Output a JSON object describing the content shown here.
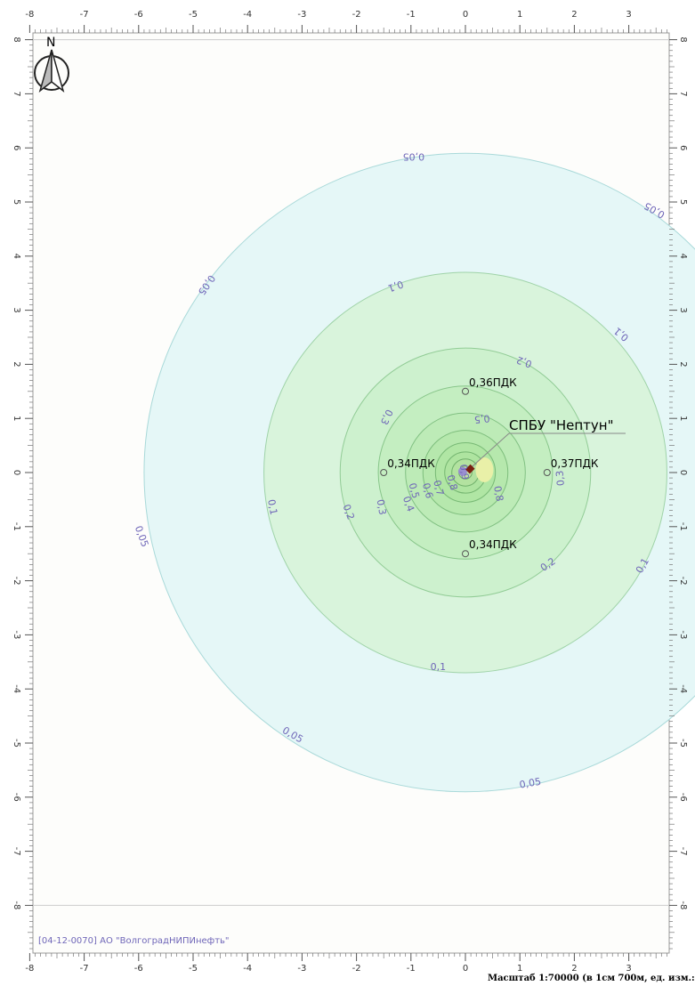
{
  "map": {
    "x_range": [
      -8,
      3.8
    ],
    "y_range": [
      -8.3,
      8.3
    ],
    "x_ticks": [
      "-8",
      "-7",
      "-6",
      "-5",
      "-4",
      "-3",
      "-2",
      "-1",
      "0",
      "1",
      "2",
      "3"
    ],
    "y_ticks": [
      "8",
      "7",
      "6",
      "5",
      "4",
      "3",
      "2",
      "1",
      "0",
      "-1",
      "-2",
      "-3",
      "-4",
      "-5",
      "-6",
      "-7",
      "-8"
    ],
    "north_label": "N",
    "source": {
      "name": "СПБУ \"Нептун\"",
      "x": 0.08,
      "y": 0.07
    },
    "isolines": [
      {
        "value": "0,05",
        "radius_km": 5.9,
        "fill": "#e5f7f7",
        "stroke": "#a9d9d9"
      },
      {
        "value": "0,1",
        "radius_km": 3.7,
        "fill": "#d9f4dc",
        "stroke": "#9fd3a8"
      },
      {
        "value": "0,2",
        "radius_km": 2.3,
        "fill": "#cdf1ce",
        "stroke": "#92cc96"
      },
      {
        "value": "0,3",
        "radius_km": 1.6,
        "fill": "#c4eec1",
        "stroke": "#88c68a"
      },
      {
        "value": "0,4",
        "radius_km": 1.1,
        "fill": "#bdebb7",
        "stroke": "#82c183"
      },
      {
        "value": "0,5",
        "radius_km": 0.78,
        "fill": "#b6e8ad",
        "stroke": "#7dbd7c"
      },
      {
        "value": "0,6",
        "radius_km": 0.55,
        "fill": "#b0e6a4",
        "stroke": "#78b975"
      },
      {
        "value": "0,7",
        "radius_km": 0.38,
        "fill": "#aee4a0",
        "stroke": "#74b570"
      },
      {
        "value": "0,8",
        "radius_km": 0.25,
        "fill": "#b3e2a0",
        "stroke": "#70b06b"
      },
      {
        "value": "0,9",
        "radius_km": 0.12,
        "fill": "#c2e2a6",
        "stroke": "#6eab66"
      }
    ],
    "iso_labels": [
      {
        "text": "0,05",
        "x": -0.95,
        "y": 5.9,
        "angle": 180
      },
      {
        "text": "0,05",
        "x": 3.5,
        "y": 4.9,
        "angle": 210
      },
      {
        "text": "0,05",
        "x": -4.8,
        "y": 3.5,
        "angle": 125
      },
      {
        "text": "0,05",
        "x": -6.0,
        "y": -1.2,
        "angle": 70
      },
      {
        "text": "0,05",
        "x": -3.2,
        "y": -4.9,
        "angle": 30
      },
      {
        "text": "0,05",
        "x": 1.2,
        "y": -5.8,
        "angle": -10
      },
      {
        "text": "0,1",
        "x": -1.3,
        "y": 3.5,
        "angle": 160
      },
      {
        "text": "0,1",
        "x": 2.9,
        "y": 2.6,
        "angle": 220
      },
      {
        "text": "0,1",
        "x": -3.6,
        "y": -0.65,
        "angle": 80
      },
      {
        "text": "0,1",
        "x": 3.3,
        "y": -1.75,
        "angle": -60
      },
      {
        "text": "0,1",
        "x": -0.5,
        "y": -3.65,
        "angle": 0
      },
      {
        "text": "0,2",
        "x": 1.1,
        "y": 2.1,
        "angle": 200
      },
      {
        "text": "0,2",
        "x": -2.2,
        "y": -0.75,
        "angle": 70
      },
      {
        "text": "0,2",
        "x": 1.55,
        "y": -1.75,
        "angle": -35
      },
      {
        "text": "0,3",
        "x": -1.5,
        "y": 1.05,
        "angle": 115
      },
      {
        "text": "0,3",
        "x": -1.6,
        "y": -0.65,
        "angle": 80
      },
      {
        "text": "0,3",
        "x": 1.8,
        "y": -0.1,
        "angle": 265
      },
      {
        "text": "0,4",
        "x": -1.1,
        "y": -0.6,
        "angle": 70
      },
      {
        "text": "0,5",
        "x": 0.3,
        "y": 1.05,
        "angle": 175
      },
      {
        "text": "0,5",
        "x": -1.0,
        "y": -0.35,
        "angle": 75
      },
      {
        "text": "0,6",
        "x": -0.75,
        "y": -0.35,
        "angle": 75
      },
      {
        "text": "0,7",
        "x": -0.55,
        "y": -0.3,
        "angle": 75
      },
      {
        "text": "0,8",
        "x": -0.3,
        "y": -0.2,
        "angle": 75
      },
      {
        "text": "0,8",
        "x": 0.55,
        "y": -0.4,
        "angle": 80
      },
      {
        "text": "0,9",
        "x": -0.08,
        "y": 0.0,
        "angle": 80
      }
    ],
    "points": [
      {
        "label": "0,36ПДК",
        "x": 0.0,
        "y": 1.5
      },
      {
        "label": "0,34ПДК",
        "x": -1.5,
        "y": 0.0
      },
      {
        "label": "0,37ПДК",
        "x": 1.5,
        "y": 0.0
      },
      {
        "label": "0,34ПДК",
        "x": 0.0,
        "y": -1.5
      }
    ],
    "footer_text": "[04-12-0070] АО \"ВолгоградНИПИнефть\"",
    "scale_text": "Масштаб 1:70000 (в 1см 700м, ед. изм.: км)"
  }
}
